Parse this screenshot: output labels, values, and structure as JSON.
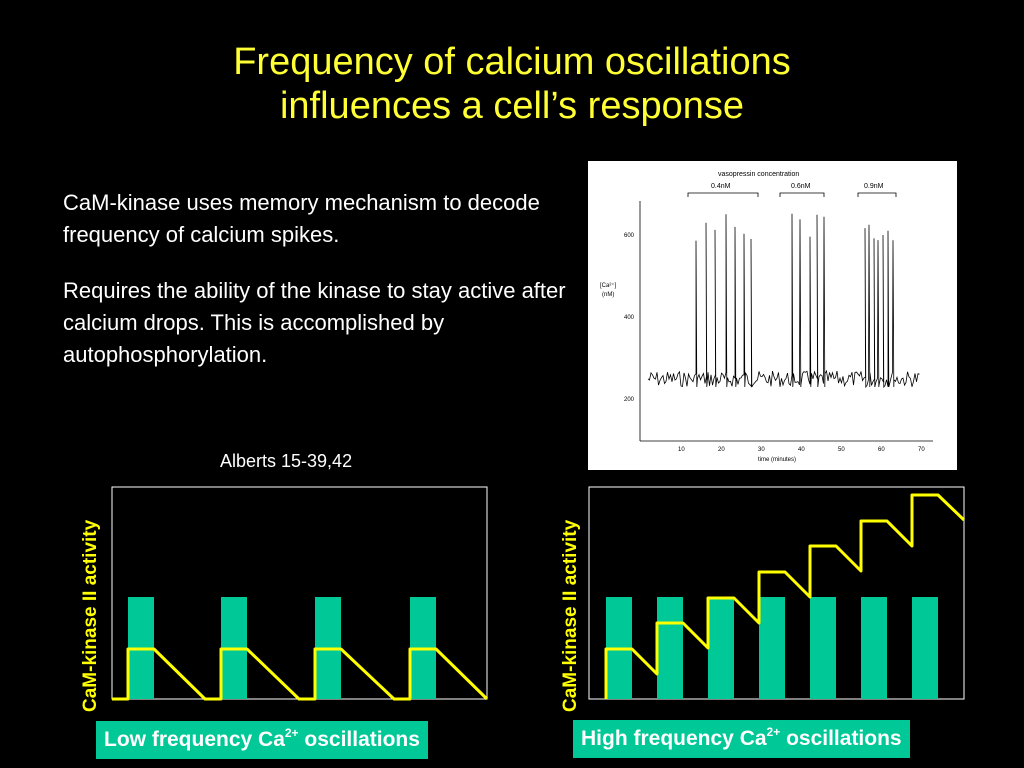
{
  "title": {
    "line1": "Frequency of calcium oscillations",
    "line2": "influences a cell’s response"
  },
  "body": {
    "paragraph1": "CaM-kinase uses memory mechanism to decode frequency of calcium spikes.",
    "paragraph2": "Requires the ability of the kinase to stay active after calcium drops. This is accomplished by autophosphorylation."
  },
  "citation": "Alberts 15-39,42",
  "figure": {
    "header": "vasopressin concentration",
    "concentrations": [
      "0.4nM",
      "0.6nM",
      "0.9nM"
    ],
    "ylabel_line1": "[Ca²⁺]",
    "ylabel_line2": "(nM)",
    "y_ticks": [
      "600",
      "400",
      "200"
    ],
    "x_ticks": [
      "10",
      "20",
      "30",
      "40",
      "50",
      "60",
      "70"
    ],
    "xlabel": "time (minutes)"
  },
  "left_panel": {
    "ylabel": "CaM-kinase II activity",
    "caption_prefix": "Low frequency Ca",
    "caption_sup": "2+",
    "caption_suffix": " oscillations"
  },
  "right_panel": {
    "ylabel": "CaM-kinase II activity",
    "caption_prefix": "High frequency Ca",
    "caption_sup": "2+",
    "caption_suffix": " oscillations"
  },
  "colors": {
    "title": "#ffff33",
    "pulse_bar": "#00c896",
    "activity_line": "#ffff00",
    "caption_bg": "#00c896"
  }
}
